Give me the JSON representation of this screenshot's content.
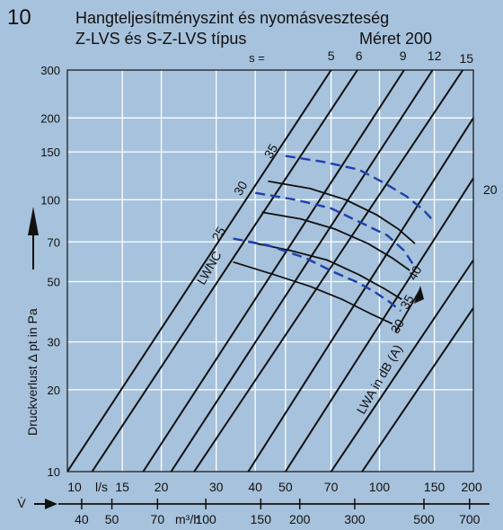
{
  "header": {
    "figure_number": "10",
    "title_line1": "Hangteljesítményszint és nyomásveszteség",
    "title_line2": "Z-LVS és S-Z-LVS típus",
    "size_label": "Méret 200"
  },
  "colors": {
    "background": "#a7c2dc",
    "grid": "#ffffff",
    "lines": "#111111",
    "lwnc": "#1f3fa8"
  },
  "chart_data": {
    "type": "line",
    "x_axis": {
      "scale": "log",
      "unit_label": "l/s",
      "range": [
        10,
        200
      ],
      "ticks": [
        "10",
        "15",
        "20",
        "30",
        "40",
        "50",
        "70",
        "100",
        "150",
        "200"
      ],
      "symbol": "V̇",
      "secondary_unit_label": "m³/h",
      "secondary_ticks": [
        "40",
        "50",
        "70",
        "100",
        "150",
        "200",
        "300",
        "500",
        "700"
      ]
    },
    "y_axis": {
      "scale": "log",
      "label": "Druckverlust Δ pt in Pa",
      "range": [
        10,
        300
      ],
      "ticks": [
        "10",
        "20",
        "30",
        "50",
        "70",
        "100",
        "150",
        "200",
        "300"
      ]
    },
    "grid": true,
    "s_prefix": "s =",
    "s_lines": [
      {
        "label": "5",
        "points": [
          [
            10,
            10
          ],
          [
            70,
            300
          ]
        ]
      },
      {
        "label": "6",
        "points": [
          [
            12,
            10
          ],
          [
            85,
            300
          ]
        ]
      },
      {
        "label": "9",
        "points": [
          [
            17.5,
            10
          ],
          [
            120,
            300
          ]
        ]
      },
      {
        "label": "12",
        "points": [
          [
            21.5,
            10
          ],
          [
            148,
            300
          ]
        ]
      },
      {
        "label": "15",
        "points": [
          [
            25.5,
            10
          ],
          [
            185,
            300
          ]
        ]
      },
      {
        "label": "20",
        "points": [
          [
            38,
            10
          ],
          [
            200,
            200
          ]
        ]
      },
      {
        "label": "",
        "points": [
          [
            50,
            10
          ],
          [
            200,
            120
          ]
        ]
      },
      {
        "label": "",
        "points": [
          [
            70,
            10
          ],
          [
            200,
            60
          ]
        ]
      },
      {
        "label": "",
        "points": [
          [
            88,
            10
          ],
          [
            200,
            40
          ]
        ]
      }
    ],
    "lwa_label": "LWA in dB (A)",
    "lwa_curves": [
      {
        "label": "30",
        "points": [
          [
            34,
            59
          ],
          [
            46,
            53
          ],
          [
            60,
            48
          ],
          [
            76,
            43
          ],
          [
            94,
            38
          ],
          [
            110,
            35
          ]
        ]
      },
      {
        "label": "35",
        "points": [
          [
            38,
            70
          ],
          [
            52,
            65
          ],
          [
            68,
            60
          ],
          [
            86,
            53
          ],
          [
            104,
            47
          ],
          [
            118,
            43
          ]
        ]
      },
      {
        "label": "40",
        "points": [
          [
            42,
            90
          ],
          [
            56,
            85
          ],
          [
            72,
            78
          ],
          [
            92,
            69
          ],
          [
            110,
            61
          ],
          [
            125,
            55
          ]
        ]
      },
      {
        "label": "",
        "points": [
          [
            44,
            117
          ],
          [
            60,
            110
          ],
          [
            78,
            100
          ],
          [
            98,
            88
          ],
          [
            115,
            78
          ],
          [
            130,
            69
          ]
        ]
      }
    ],
    "lwnc_label": "LWNC",
    "lwnc_curves": [
      {
        "label": "25",
        "points": [
          [
            34,
            72
          ],
          [
            44,
            68
          ],
          [
            58,
            61
          ],
          [
            72,
            54
          ],
          [
            84,
            50
          ],
          [
            96,
            46
          ],
          [
            108,
            42
          ],
          [
            117,
            39
          ]
        ]
      },
      {
        "label": "30",
        "points": [
          [
            40,
            106
          ],
          [
            54,
            100
          ],
          [
            70,
            93
          ],
          [
            88,
            82
          ],
          [
            106,
            74
          ],
          [
            120,
            65
          ],
          [
            128,
            58
          ]
        ]
      },
      {
        "label": "35",
        "points": [
          [
            50,
            145
          ],
          [
            66,
            138
          ],
          [
            86,
            129
          ],
          [
            104,
            115
          ],
          [
            122,
            103
          ],
          [
            138,
            92
          ],
          [
            150,
            83
          ]
        ]
      }
    ]
  }
}
